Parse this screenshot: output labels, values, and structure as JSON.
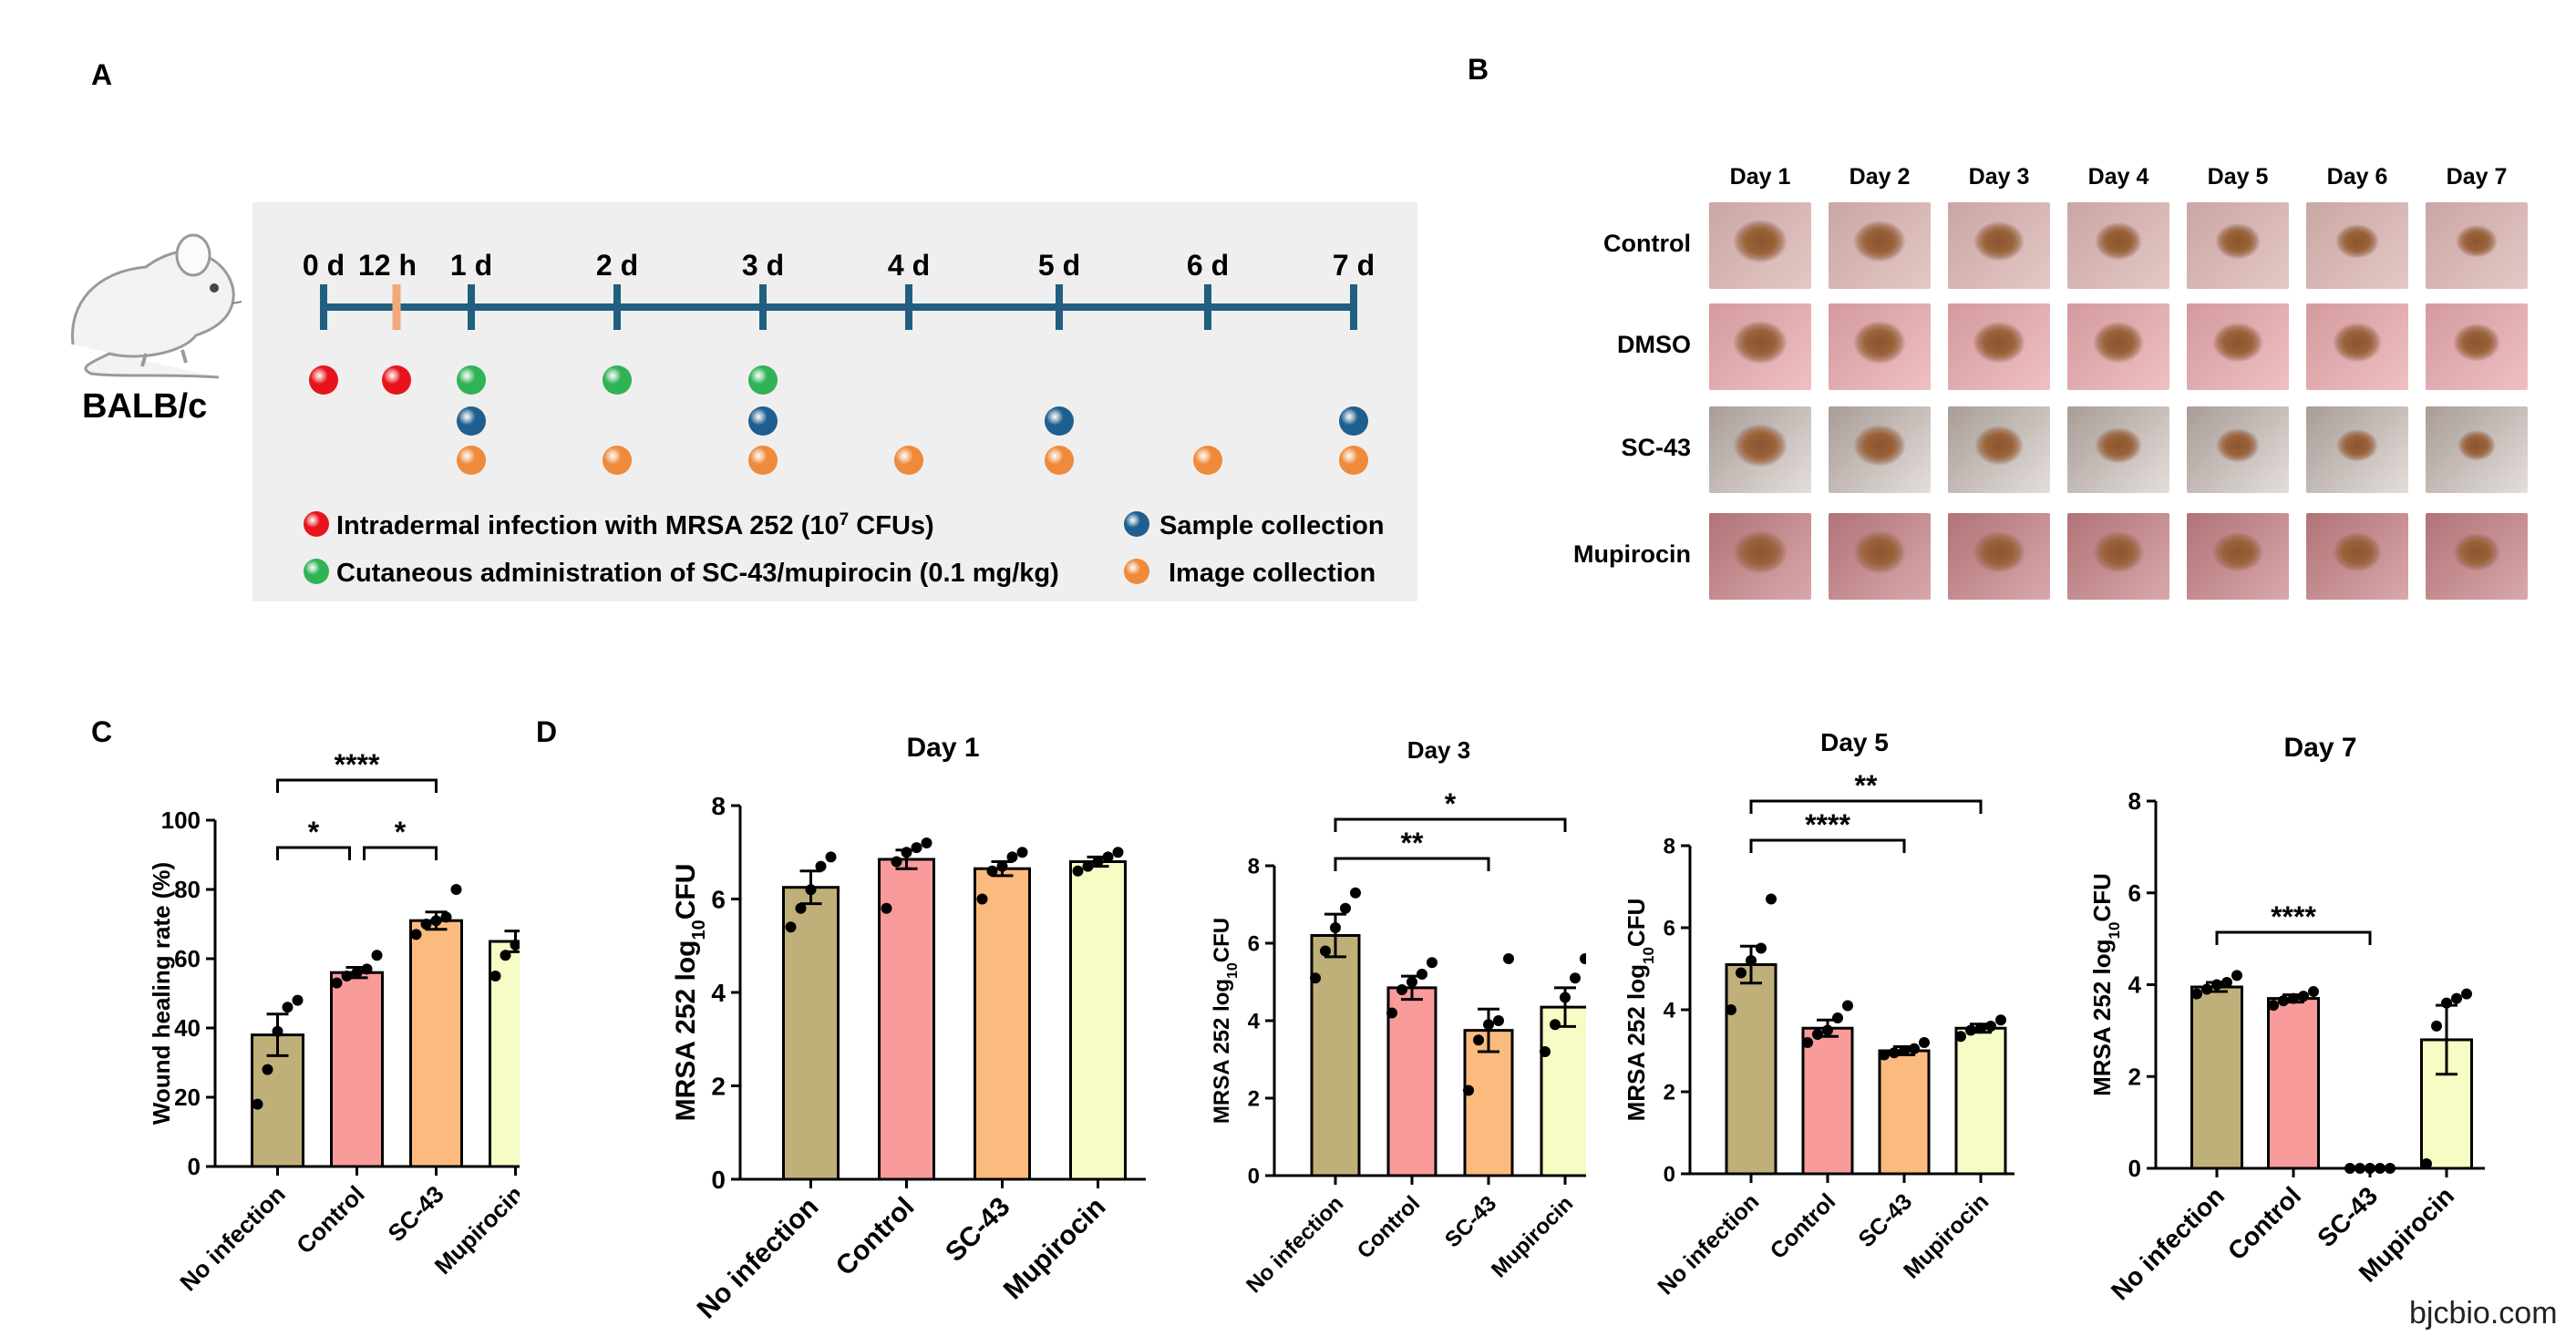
{
  "panel_letters": {
    "a": "A",
    "b": "B",
    "c": "C",
    "d": "D"
  },
  "panel_a": {
    "strain": "BALB/c",
    "timepoints": [
      "0 d",
      "12 h",
      "1 d",
      "2 d",
      "3 d",
      "4 d",
      "5 d",
      "6 d",
      "7 d"
    ],
    "legend": {
      "infection": "Intradermal infection with MRSA 252 (10",
      "infection_sup": "7",
      "infection_tail": " CFUs)",
      "administration": "Cutaneous administration of SC-43/mupirocin (0.1 mg/kg)",
      "sample": "Sample collection",
      "image": "Image collection"
    },
    "colors": {
      "infection": "#e8141b",
      "administration": "#2fb355",
      "sample": "#1f5f8f",
      "image": "#ef8a3a",
      "axis": "#215e80",
      "marker_12h": "#f2a97a"
    },
    "events": {
      "infection": [
        "0 d",
        "12 h"
      ],
      "administration": [
        "1 d",
        "2 d",
        "3 d"
      ],
      "sample": [
        "1 d",
        "3 d",
        "5 d",
        "7 d"
      ],
      "image": [
        "1 d",
        "2 d",
        "3 d",
        "4 d",
        "5 d",
        "6 d",
        "7 d"
      ]
    }
  },
  "panel_b": {
    "days": [
      "Day 1",
      "Day 2",
      "Day 3",
      "Day 4",
      "Day 5",
      "Day 6",
      "Day 7"
    ],
    "groups": [
      "Control",
      "DMSO",
      "SC-43",
      "Mupirocin"
    ]
  },
  "bar_colors": {
    "No infection": "#bfb07a",
    "Control": "#f99b9b",
    "SC-43": "#fbbb7e",
    "Mupirocin": "#f7fbc4"
  },
  "chart_data": [
    {
      "id": "C",
      "type": "bar",
      "title": "",
      "ylabel": "Wound healing rate (%)",
      "categories": [
        "No infection",
        "Control",
        "SC-43",
        "Mupirocin"
      ],
      "values": [
        38,
        56,
        71,
        65
      ],
      "sem": [
        6,
        1.5,
        2.5,
        3
      ],
      "points": [
        [
          18,
          28,
          39,
          46,
          48
        ],
        [
          53,
          55,
          56,
          57,
          61
        ],
        [
          67,
          70,
          71,
          72,
          80
        ],
        [
          55,
          61,
          64,
          65,
          68
        ]
      ],
      "ylim": [
        0,
        100
      ],
      "yticks": [
        0,
        20,
        40,
        60,
        80,
        100
      ],
      "significance": [
        {
          "from": 0,
          "to": 1,
          "label": "*"
        },
        {
          "from": 1,
          "to": 2,
          "label": "*"
        },
        {
          "from": 0,
          "to": 2,
          "label": "****"
        }
      ]
    },
    {
      "id": "D-day1",
      "type": "bar",
      "title": "Day 1",
      "ylabel": "MRSA 252 log10CFU",
      "categories": [
        "No infection",
        "Control",
        "SC-43",
        "Mupirocin"
      ],
      "values": [
        6.25,
        6.85,
        6.65,
        6.8
      ],
      "sem": [
        0.35,
        0.2,
        0.15,
        0.1
      ],
      "points": [
        [
          5.4,
          5.8,
          6.2,
          6.7,
          6.9
        ],
        [
          5.8,
          6.8,
          7.0,
          7.1,
          7.2
        ],
        [
          6.0,
          6.6,
          6.7,
          6.9,
          7.0
        ],
        [
          6.6,
          6.7,
          6.8,
          6.9,
          7.0
        ]
      ],
      "ylim": [
        0,
        8
      ],
      "yticks": [
        0,
        2,
        4,
        6,
        8
      ],
      "significance": []
    },
    {
      "id": "D-day3",
      "type": "bar",
      "title": "Day 3",
      "ylabel": "MRSA 252 log10CFU",
      "categories": [
        "No infection",
        "Control",
        "SC-43",
        "Mupirocin"
      ],
      "values": [
        6.2,
        4.85,
        3.75,
        4.35
      ],
      "sem": [
        0.55,
        0.3,
        0.55,
        0.5
      ],
      "points": [
        [
          5.1,
          5.8,
          6.4,
          6.9,
          7.3
        ],
        [
          4.2,
          4.8,
          5.0,
          5.2,
          5.5
        ],
        [
          2.2,
          3.5,
          3.9,
          4.0,
          5.6
        ],
        [
          3.2,
          3.9,
          4.6,
          5.1,
          5.6
        ]
      ],
      "ylim": [
        0,
        8
      ],
      "yticks": [
        0,
        2,
        4,
        6,
        8
      ],
      "significance": [
        {
          "from": 0,
          "to": 2,
          "label": "**"
        },
        {
          "from": 0,
          "to": 3,
          "label": "*"
        }
      ]
    },
    {
      "id": "D-day5",
      "type": "bar",
      "title": "Day 5",
      "ylabel": "MRSA 252 log10CFU",
      "categories": [
        "No infection",
        "Control",
        "SC-43",
        "Mupirocin"
      ],
      "values": [
        5.1,
        3.55,
        3.0,
        3.55
      ],
      "sem": [
        0.45,
        0.2,
        0.1,
        0.1
      ],
      "points": [
        [
          4.0,
          4.9,
          5.2,
          5.5,
          6.7
        ],
        [
          3.2,
          3.4,
          3.5,
          3.8,
          4.1
        ],
        [
          2.9,
          2.95,
          3.0,
          3.05,
          3.2
        ],
        [
          3.35,
          3.5,
          3.55,
          3.6,
          3.75
        ]
      ],
      "ylim": [
        0,
        8
      ],
      "yticks": [
        0,
        2,
        4,
        6,
        8
      ],
      "significance": [
        {
          "from": 0,
          "to": 2,
          "label": "****"
        },
        {
          "from": 0,
          "to": 3,
          "label": "**"
        }
      ]
    },
    {
      "id": "D-day7",
      "type": "bar",
      "title": "Day 7",
      "ylabel": "MRSA 252 log10CFU",
      "categories": [
        "No infection",
        "Control",
        "SC-43",
        "Mupirocin"
      ],
      "values": [
        3.95,
        3.7,
        0,
        2.8
      ],
      "sem": [
        0.1,
        0.08,
        0,
        0.75
      ],
      "points": [
        [
          3.8,
          3.9,
          4.0,
          4.05,
          4.2
        ],
        [
          3.55,
          3.65,
          3.7,
          3.75,
          3.85
        ],
        [
          0,
          0,
          0,
          0,
          0
        ],
        [
          0.1,
          3.1,
          3.6,
          3.7,
          3.8
        ]
      ],
      "ylim": [
        0,
        8
      ],
      "yticks": [
        0,
        2,
        4,
        6,
        8
      ],
      "significance": [
        {
          "from": 0,
          "to": 2,
          "label": "****"
        }
      ]
    }
  ],
  "watermark": "bjcbio.com"
}
